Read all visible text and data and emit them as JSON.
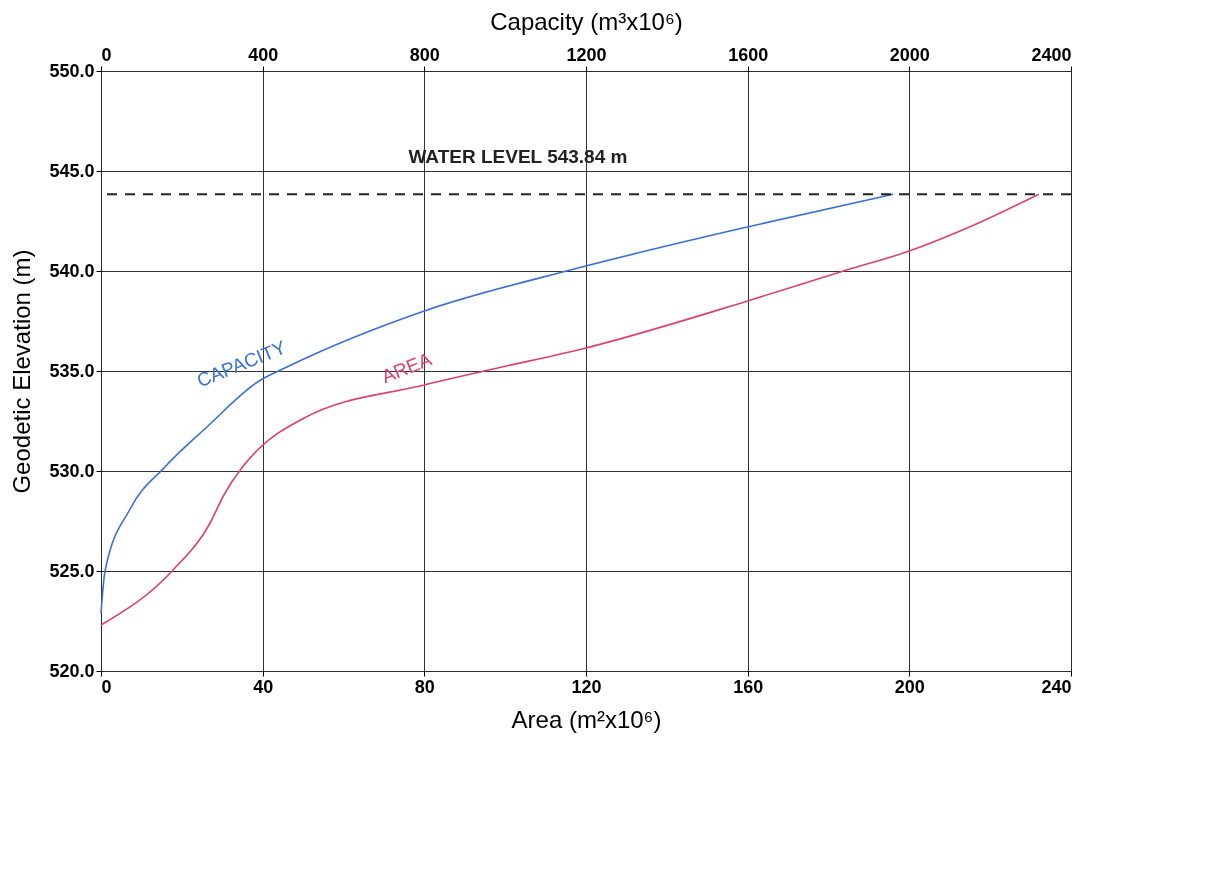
{
  "chart_data": {
    "type": "line",
    "xlabel": "Area (m²x10⁶)",
    "x2label": "Capacity (m³x10⁶)",
    "ylabel": "Geodetic Elevation (m)",
    "xlim": [
      0,
      240
    ],
    "xticks": [
      0,
      40,
      80,
      120,
      160,
      200,
      240
    ],
    "x2lim": [
      0,
      2400
    ],
    "x2ticks": [
      0,
      400,
      800,
      {
        "value": 1200,
        "label": "1200"
      },
      {
        "value": 1600,
        "label": "1600"
      },
      {
        "value": 2000,
        "label": "2000"
      },
      {
        "value": 2400,
        "label": "2400"
      }
    ],
    "ylim": [
      520,
      550
    ],
    "yticks": [
      {
        "value": 520,
        "label": "520.0"
      },
      {
        "value": 525,
        "label": "525.0"
      },
      {
        "value": 530,
        "label": "530.0"
      },
      {
        "value": 535,
        "label": "535.0"
      },
      {
        "value": 540,
        "label": "540.0"
      },
      {
        "value": 545,
        "label": "545.0"
      },
      {
        "value": 550,
        "label": "550.0"
      }
    ],
    "grid": true,
    "legend": false,
    "line_style": "solid",
    "marker": "none",
    "series": [
      {
        "name": "CAPACITY",
        "color": "#3a6fd8",
        "axis": "x2",
        "x": [
          0,
          10,
          72,
          158,
          262,
          391,
          460,
          800,
          1171,
          1599,
          1960
        ],
        "values": [
          522.9,
          525.0,
          528.1,
          530.2,
          532.2,
          534.5,
          535.2,
          538.0,
          540.1,
          542.2,
          543.84
        ]
      },
      {
        "name": "AREA",
        "color": "#e0406a",
        "x": [
          0,
          17.6,
          27,
          30.4,
          35,
          39,
          49.8,
          80,
          97,
          119,
          160,
          183.7,
          200,
          216,
          232
        ],
        "values": [
          522.3,
          525.0,
          527.4,
          528.8,
          530.2,
          531.1,
          532.6,
          534.3,
          535.1,
          536.1,
          538.5,
          540.0,
          541.0,
          542.3,
          543.84
        ]
      }
    ],
    "ref_lines": [
      {
        "axis": "y",
        "value": 543.84,
        "label": "WATER LEVEL 543.84 m",
        "color": "#222222",
        "line_style": "dashed"
      }
    ]
  }
}
